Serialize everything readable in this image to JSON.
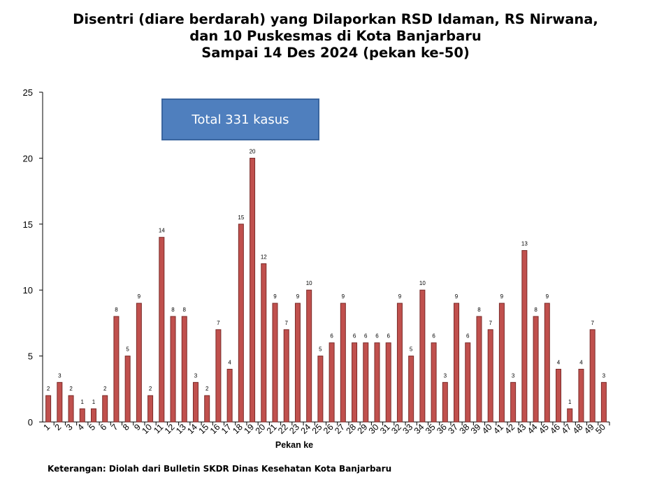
{
  "title": {
    "line1": "Disentri (diare berdarah) yang Dilaporkan RSD Idaman, RS Nirwana,",
    "line2": "dan 10 Puskesmas di Kota Banjarbaru",
    "line3": "Sampai 14 Des 2024 (pekan ke-50)"
  },
  "annotation": {
    "total_label": "Total 331 kasus"
  },
  "footnote": "Keterangan: Diolah dari Bulletin SKDR Dinas Kesehatan Kota Banjarbaru",
  "colors": {
    "bar_fill": "#c0504d",
    "bar_stroke": "#7a2b29",
    "box_fill": "#4f7fbe"
  },
  "chart_data": {
    "type": "bar",
    "title": "Disentri (diare berdarah) yang Dilaporkan RSD Idaman, RS Nirwana, dan 10 Puskesmas di Kota Banjarbaru Sampai 14 Des 2024 (pekan ke-50)",
    "xlabel": "Pekan ke",
    "ylabel": "",
    "ylim": [
      0,
      25
    ],
    "yticks": [
      0,
      5,
      10,
      15,
      20,
      25
    ],
    "grid": false,
    "data_labels": true,
    "categories": [
      "1",
      "2",
      "3",
      "4",
      "5",
      "6",
      "7",
      "8",
      "9",
      "10",
      "11",
      "12",
      "13",
      "14",
      "15",
      "16",
      "17",
      "18",
      "19",
      "20",
      "21",
      "22",
      "23",
      "24",
      "25",
      "26",
      "27",
      "28",
      "29",
      "30",
      "31",
      "32",
      "33",
      "34",
      "35",
      "36",
      "37",
      "38",
      "39",
      "40",
      "41",
      "42",
      "43",
      "44",
      "45",
      "46",
      "47",
      "48",
      "49",
      "50"
    ],
    "values": [
      2,
      3,
      2,
      1,
      1,
      2,
      8,
      5,
      9,
      2,
      14,
      8,
      8,
      3,
      2,
      7,
      4,
      15,
      20,
      12,
      9,
      7,
      9,
      10,
      5,
      6,
      9,
      6,
      6,
      6,
      6,
      9,
      5,
      10,
      6,
      3,
      9,
      6,
      8,
      7,
      9,
      3,
      13,
      8,
      9,
      4,
      1,
      4,
      7,
      3
    ]
  }
}
